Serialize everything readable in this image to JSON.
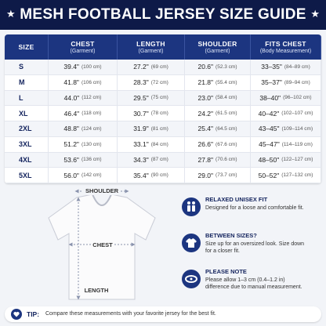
{
  "header": {
    "title": "MESH FOOTBALL JERSEY SIZE GUIDE"
  },
  "table": {
    "columns": [
      {
        "name": "SIZE"
      },
      {
        "name": "CHEST",
        "sub": "(Garment)"
      },
      {
        "name": "LENGTH",
        "sub": "(Garment)"
      },
      {
        "name": "SHOULDER",
        "sub": "(Garment)"
      },
      {
        "name": "FITS CHEST",
        "sub": "(Body Measurement)"
      }
    ],
    "rows": [
      [
        "S",
        [
          "39.4\"",
          "(100 cm)"
        ],
        [
          "27.2\"",
          "(69 cm)"
        ],
        [
          "20.6\"",
          "(52.3 cm)"
        ],
        [
          "33–35\"",
          "(84–89 cm)"
        ]
      ],
      [
        "M",
        [
          "41.8\"",
          "(106 cm)"
        ],
        [
          "28.3\"",
          "(72 cm)"
        ],
        [
          "21.8\"",
          "(55.4 cm)"
        ],
        [
          "35–37\"",
          "(89–94 cm)"
        ]
      ],
      [
        "L",
        [
          "44.0\"",
          "(112 cm)"
        ],
        [
          "29.5\"",
          "(75 cm)"
        ],
        [
          "23.0\"",
          "(58.4 cm)"
        ],
        [
          "38–40\"",
          "(96–102 cm)"
        ]
      ],
      [
        "XL",
        [
          "46.4\"",
          "(118 cm)"
        ],
        [
          "30.7\"",
          "(78 cm)"
        ],
        [
          "24.2\"",
          "(61.5 cm)"
        ],
        [
          "40–42\"",
          "(102–107 cm)"
        ]
      ],
      [
        "2XL",
        [
          "48.8\"",
          "(124 cm)"
        ],
        [
          "31.9\"",
          "(81 cm)"
        ],
        [
          "25.4\"",
          "(64.5 cm)"
        ],
        [
          "43–45\"",
          "(109–114 cm)"
        ]
      ],
      [
        "3XL",
        [
          "51.2\"",
          "(130 cm)"
        ],
        [
          "33.1\"",
          "(84 cm)"
        ],
        [
          "26.6\"",
          "(67.6 cm)"
        ],
        [
          "45–47\"",
          "(114–119 cm)"
        ]
      ],
      [
        "4XL",
        [
          "53.6\"",
          "(136 cm)"
        ],
        [
          "34.3\"",
          "(87 cm)"
        ],
        [
          "27.8\"",
          "(70.6 cm)"
        ],
        [
          "48–50\"",
          "(122–127 cm)"
        ]
      ],
      [
        "5XL",
        [
          "56.0\"",
          "(142 cm)"
        ],
        [
          "35.4\"",
          "(90 cm)"
        ],
        [
          "29.0\"",
          "(73.7 cm)"
        ],
        [
          "50–52\"",
          "(127–132 cm)"
        ]
      ]
    ]
  },
  "diagram": {
    "shoulder": "SHOULDER",
    "chest": "CHEST",
    "length": "LENGTH"
  },
  "notes": [
    {
      "title": "RELAXED UNISEX FIT",
      "text": "Designed for a loose and comfortable fit."
    },
    {
      "title": "BETWEEN SIZES?",
      "text": "Size up for an oversized look. Size down for a closer fit."
    },
    {
      "title": "PLEASE NOTE",
      "text": "Please allow 1–3 cm (0.4–1.2 in) difference due to manual measurement."
    }
  ],
  "tip": {
    "label": "TIP:",
    "text": "Compare these measurements with your favorite jersey for the best fit."
  }
}
